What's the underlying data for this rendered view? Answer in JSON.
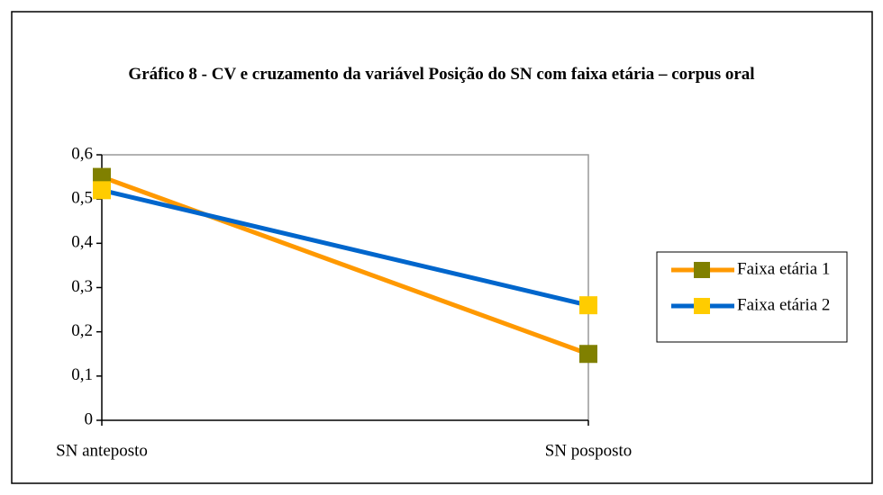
{
  "chart_data": {
    "type": "line",
    "title": "Gráfico 8 - CV e cruzamento da variável Posição do SN com faixa etária – corpus oral",
    "categories": [
      "SN anteposto",
      "SN posposto"
    ],
    "series": [
      {
        "name": "Faixa etária 1",
        "color": "#ff9900",
        "marker_color": "#808000",
        "values": [
          0.55,
          0.15
        ]
      },
      {
        "name": "Faixa etária 2",
        "color": "#0066cc",
        "marker_color": "#ffcc00",
        "values": [
          0.52,
          0.26
        ]
      }
    ],
    "ylim": [
      0,
      0.6
    ],
    "yticks": [
      0,
      {
        "value": 0.1,
        "label": "0,1"
      },
      {
        "value": 0.2,
        "label": "0,2"
      },
      {
        "value": 0.3,
        "label": "0,3"
      },
      {
        "value": 0.4,
        "label": "0,4"
      },
      {
        "value": 0.5,
        "label": "0,5"
      },
      {
        "value": 0.6,
        "label": "0,6"
      }
    ],
    "legend": "right"
  }
}
